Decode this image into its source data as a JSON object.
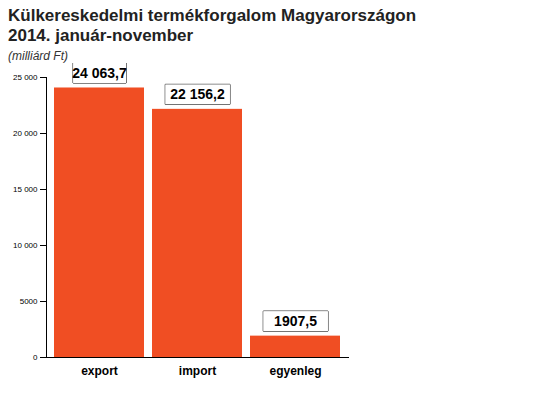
{
  "chart_data": {
    "type": "bar",
    "title": "Külkereskedelmi termékforgalom Magyarországon\n2014. január-november",
    "subtitle": "(milliárd Ft)",
    "categories": [
      "export",
      "import",
      "egyenleg"
    ],
    "values": [
      24063.7,
      22156.2,
      1907.5
    ],
    "value_labels": [
      "24 063,7",
      "22 156,2",
      "1907,5"
    ],
    "color": "#f04e23",
    "ylim": [
      0,
      25000
    ],
    "yticks": [
      0,
      5000,
      {
        "value": 10000,
        "label": "10 000"
      },
      {
        "value": 15000,
        "label": "15 000"
      },
      {
        "value": 20000,
        "label": "20 000"
      },
      {
        "value": 25000,
        "label": "25 000"
      }
    ],
    "grid": false,
    "data_labels": true
  }
}
